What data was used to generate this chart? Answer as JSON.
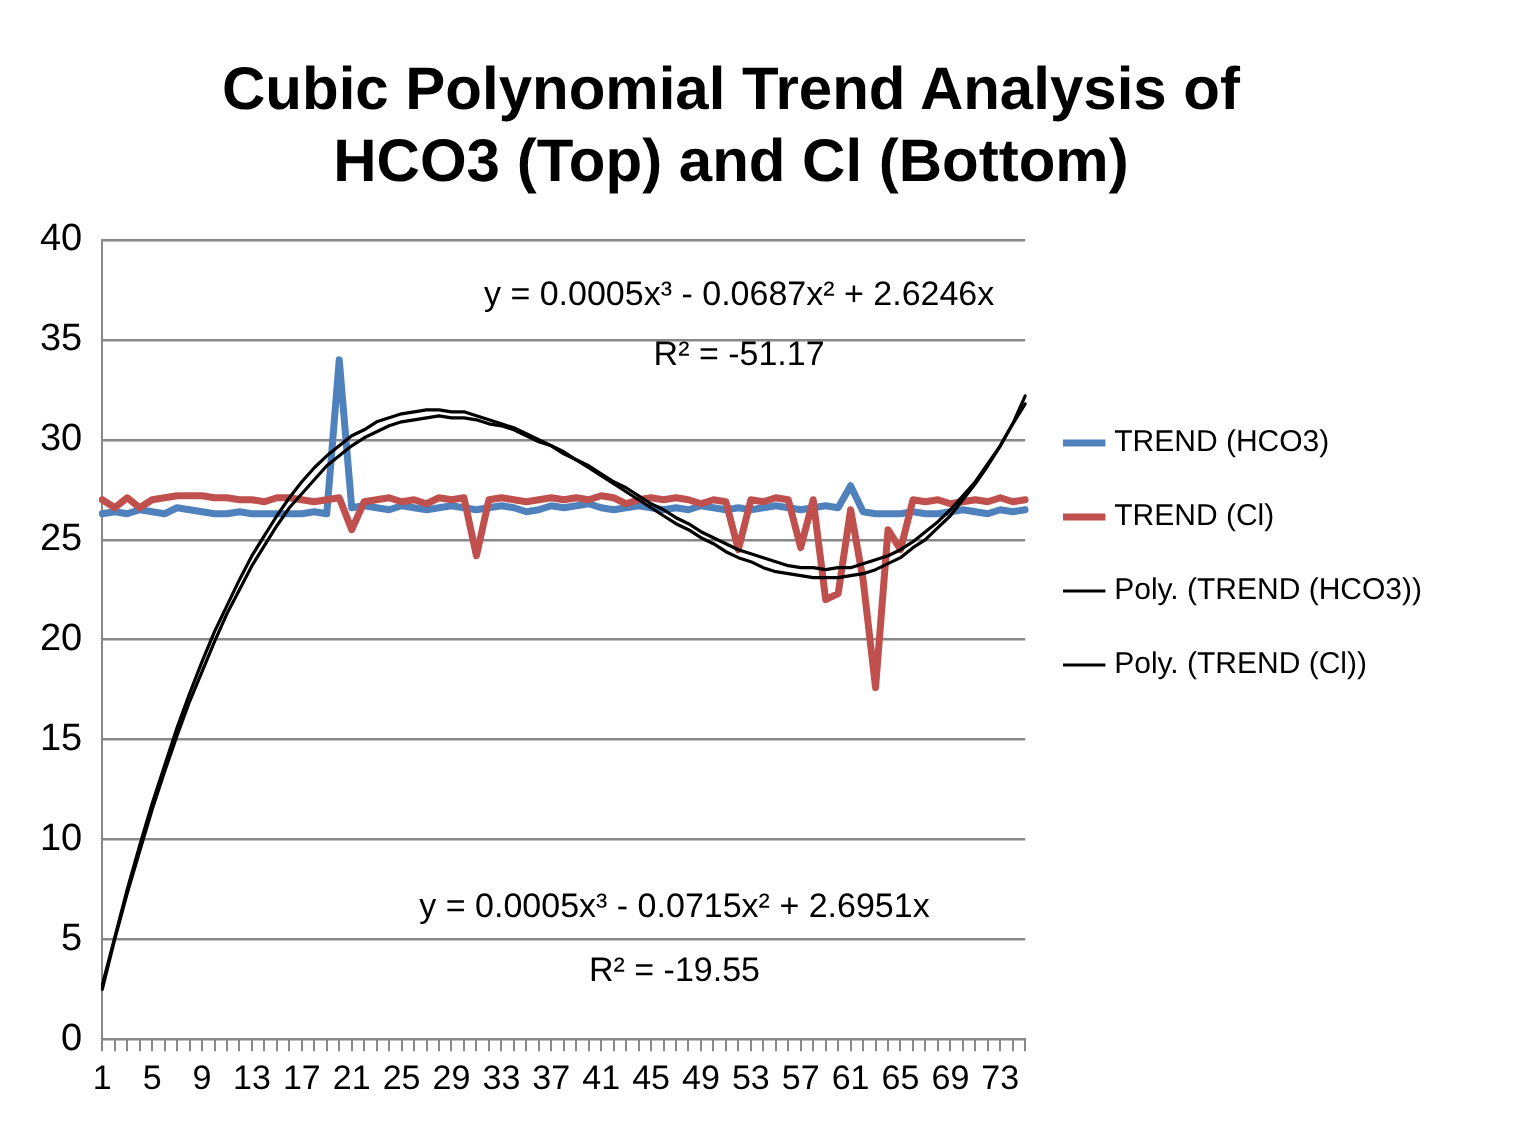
{
  "chart_data": {
    "type": "line",
    "title": "Cubic Polynomial Trend Analysis of HCO3 (Top) and Cl (Bottom)",
    "categories": [
      "1",
      null,
      null,
      null,
      "5",
      null,
      null,
      null,
      "9",
      null,
      null,
      null,
      "13",
      null,
      null,
      null,
      "17",
      null,
      null,
      null,
      "21",
      null,
      null,
      null,
      "25",
      null,
      null,
      null,
      "29",
      null,
      null,
      null,
      "33",
      null,
      null,
      null,
      "37",
      null,
      null,
      null,
      "41",
      null,
      null,
      null,
      "45",
      null,
      null,
      null,
      "49",
      null,
      null,
      null,
      "53",
      null,
      null,
      null,
      "57",
      null,
      null,
      null,
      "61",
      null,
      null,
      null,
      "65",
      null,
      null,
      null,
      "69",
      null,
      null,
      null,
      "73",
      null,
      null
    ],
    "series": [
      {
        "name": "TREND (HCO3)",
        "color": "#4f81bd",
        "values": [
          26.3,
          26.4,
          26.3,
          26.5,
          26.4,
          26.3,
          26.6,
          26.5,
          26.4,
          26.3,
          26.3,
          26.4,
          26.3,
          26.3,
          26.3,
          26.3,
          26.3,
          26.4,
          26.3,
          34,
          26.6,
          26.7,
          26.6,
          26.5,
          26.7,
          26.6,
          26.5,
          26.6,
          26.7,
          26.6,
          26.5,
          26.6,
          26.7,
          26.6,
          26.4,
          26.5,
          26.7,
          26.6,
          26.7,
          26.8,
          26.6,
          26.5,
          26.6,
          26.7,
          26.6,
          26.5,
          26.6,
          26.5,
          26.7,
          26.6,
          26.5,
          26.6,
          26.5,
          26.6,
          26.7,
          26.6,
          26.5,
          26.6,
          26.7,
          26.6,
          27.7,
          26.4,
          26.3,
          26.3,
          26.3,
          26.4,
          26.3,
          26.3,
          26.4,
          26.5,
          26.4,
          26.3,
          26.5,
          26.4,
          26.5
        ]
      },
      {
        "name": "TREND (Cl)",
        "color": "#c0504d",
        "values": [
          27,
          26.6,
          27.1,
          26.6,
          27,
          27.1,
          27.2,
          27.2,
          27.2,
          27.1,
          27.1,
          27,
          27,
          26.9,
          27.1,
          27.1,
          27,
          26.9,
          27,
          27.1,
          25.5,
          26.9,
          27,
          27.1,
          26.9,
          27,
          26.8,
          27.1,
          27,
          27.1,
          24.2,
          27,
          27.1,
          27,
          26.9,
          27,
          27.1,
          27,
          27.1,
          27,
          27.2,
          27.1,
          26.8,
          27,
          27.1,
          27,
          27.1,
          27,
          26.8,
          27,
          26.9,
          24.5,
          27,
          26.9,
          27.1,
          27,
          24.6,
          27,
          22,
          22.3,
          26.5,
          23,
          17.6,
          25.5,
          24.5,
          27,
          26.9,
          27,
          26.8,
          26.9,
          27,
          26.9,
          27.1,
          26.9,
          27
        ]
      },
      {
        "name": "Poly. (TREND (HCO3))",
        "color": "#000000",
        "values": [
          2.5,
          5,
          7.3,
          9.4,
          11.5,
          13.4,
          15.2,
          16.9,
          18.4,
          19.9,
          21.3,
          22.5,
          23.7,
          24.7,
          25.7,
          26.6,
          27.3,
          28,
          28.7,
          29.2,
          29.7,
          30.1,
          30.4,
          30.7,
          30.9,
          31,
          31.1,
          31.2,
          31.1,
          31.1,
          31,
          30.8,
          30.7,
          30.5,
          30.2,
          29.9,
          29.7,
          29.3,
          29,
          28.7,
          28.3,
          27.9,
          27.6,
          27.2,
          26.8,
          26.5,
          26.1,
          25.8,
          25.4,
          25.1,
          24.8,
          24.5,
          24.3,
          24.1,
          23.9,
          23.7,
          23.6,
          23.6,
          23.5,
          23.6,
          23.6,
          23.8,
          24,
          24.2,
          24.5,
          24.9,
          25.4,
          25.9,
          26.5,
          27.2,
          27.9,
          28.8,
          29.7,
          30.8,
          31.8
        ]
      },
      {
        "name": "Poly. (TREND (Cl))",
        "color": "#000000",
        "values": [
          2.7,
          5.1,
          7.5,
          9.7,
          11.8,
          13.7,
          15.6,
          17.3,
          18.9,
          20.4,
          21.7,
          23,
          24.2,
          25.2,
          26.2,
          27.1,
          27.9,
          28.6,
          29.2,
          29.7,
          30.2,
          30.5,
          30.9,
          31.1,
          31.3,
          31.4,
          31.5,
          31.5,
          31.4,
          31.4,
          31.2,
          31,
          30.8,
          30.6,
          30.3,
          30,
          29.7,
          29.4,
          29,
          28.6,
          28.2,
          27.8,
          27.4,
          27,
          26.6,
          26.2,
          25.8,
          25.5,
          25.1,
          24.8,
          24.4,
          24.1,
          23.9,
          23.6,
          23.4,
          23.3,
          23.2,
          23.1,
          23.1,
          23.1,
          23.2,
          23.3,
          23.5,
          23.8,
          24.1,
          24.6,
          25,
          25.6,
          26.2,
          27,
          27.8,
          28.7,
          29.7,
          30.8,
          32.2
        ]
      }
    ],
    "ylim": [
      0,
      40
    ],
    "yticks": [
      0,
      5,
      10,
      15,
      20,
      25,
      30,
      35,
      40
    ],
    "grid": "y",
    "legend": "right",
    "marker": "none",
    "line_style": "solid",
    "annotations": [
      "y = 0.0005x³ - 0.0687x² + 2.6246x",
      "R² = -51.17",
      "y = 0.0005x³ - 0.0715x² + 2.6951x",
      "R² = -19.55"
    ]
  }
}
